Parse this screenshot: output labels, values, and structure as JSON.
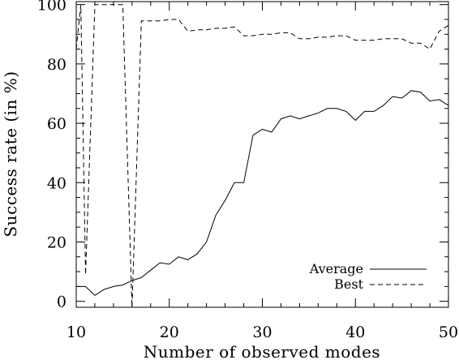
{
  "chart_data": {
    "type": "line",
    "title": "",
    "xlabel": "Number of observed modes",
    "ylabel": "Success rate (in %)",
    "xlim": [
      10,
      50
    ],
    "ylim": [
      -2,
      101
    ],
    "x_ticks": [
      10,
      20,
      30,
      40,
      50
    ],
    "y_ticks": [
      0,
      20,
      40,
      60,
      80,
      100
    ],
    "grid": false,
    "legend_position": "bottom-right",
    "series": [
      {
        "name": "Average",
        "line_style": "solid",
        "color": "#000000",
        "x": [
          10,
          11,
          12,
          13,
          14,
          15,
          16,
          17,
          18,
          19,
          20,
          21,
          22,
          23,
          24,
          25,
          26,
          27,
          28,
          29,
          30,
          31,
          32,
          33,
          34,
          35,
          36,
          37,
          38,
          39,
          40,
          41,
          42,
          43,
          44,
          45,
          46,
          47,
          48,
          49,
          50
        ],
        "y": [
          5,
          5,
          2,
          4,
          5,
          5.5,
          7,
          8,
          10.5,
          13,
          12.5,
          15,
          14,
          16,
          20,
          29,
          34,
          40,
          40,
          56,
          58,
          57,
          61.5,
          62.5,
          61.5,
          62.5,
          63.5,
          65,
          65,
          64,
          61,
          64,
          64,
          66,
          69,
          68.5,
          71,
          70.5,
          67.5,
          68,
          66
        ]
      },
      {
        "name": "Best",
        "line_style": "dashed",
        "color": "#000000",
        "x": [
          10,
          10.5,
          11,
          12,
          13,
          14,
          15,
          16,
          17,
          18,
          19,
          20,
          21,
          22,
          23,
          24,
          25,
          26,
          27,
          28,
          29,
          30,
          31,
          32,
          33,
          34,
          35,
          36,
          37,
          38,
          39,
          40,
          41,
          42,
          43,
          44,
          45,
          46,
          47,
          48,
          49,
          50
        ],
        "y": [
          85,
          100,
          9,
          100,
          100,
          100,
          100,
          -2,
          94.5,
          94.5,
          94.5,
          95,
          95,
          91,
          91.5,
          91.5,
          92,
          92,
          92.5,
          89.5,
          89.5,
          90,
          90,
          90.5,
          90.5,
          88.5,
          88.5,
          89,
          89,
          89.5,
          89.5,
          88,
          88,
          88,
          88.5,
          88.5,
          88.5,
          87,
          87,
          85,
          91,
          93
        ]
      }
    ]
  }
}
